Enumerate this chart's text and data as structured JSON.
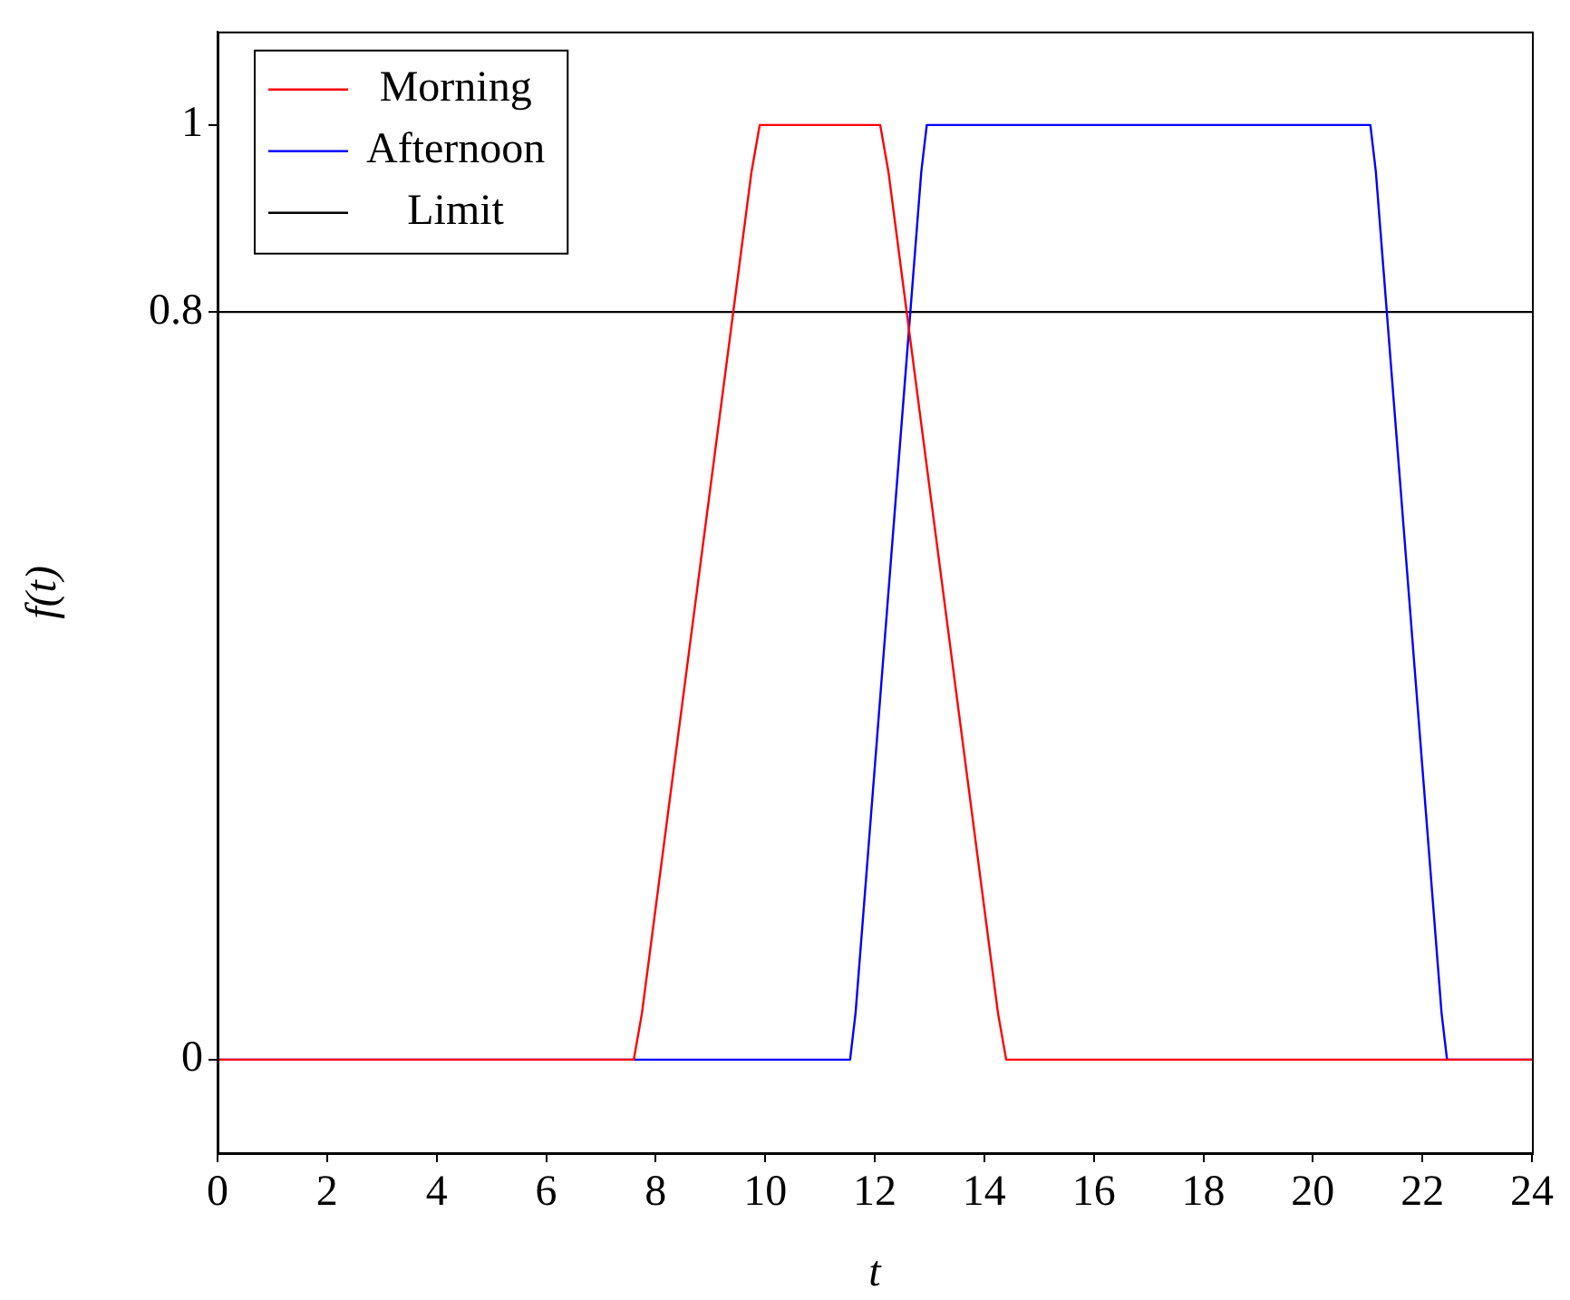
{
  "chart_data": {
    "type": "line",
    "xlabel": "t",
    "ylabel": "f(t)",
    "xlim": [
      0,
      24
    ],
    "xticks": [
      0,
      2,
      4,
      6,
      8,
      10,
      12,
      14,
      16,
      18,
      20,
      22,
      24
    ],
    "ylim": [
      -0.1,
      1.1
    ],
    "yticks": [
      0,
      0.8,
      1
    ],
    "legend": "top left",
    "series": [
      {
        "name": "Morning",
        "color": "#ff0000",
        "x": [
          0,
          7.6,
          7.75,
          9.75,
          9.9,
          12.1,
          12.25,
          14.25,
          14.4,
          24
        ],
        "values": [
          0,
          0,
          0.05,
          0.95,
          1,
          1,
          0.95,
          0.05,
          0,
          0
        ]
      },
      {
        "name": "Afternoon",
        "color": "#0000ff",
        "x": [
          0,
          11.55,
          11.65,
          12.85,
          12.95,
          21.05,
          21.15,
          22.35,
          22.45,
          24
        ],
        "values": [
          0,
          0,
          0.05,
          0.95,
          1,
          1,
          0.95,
          0.05,
          0,
          0
        ]
      },
      {
        "name": "Limit",
        "color": "#000000",
        "x": [
          0,
          24
        ],
        "values": [
          0.8,
          0.8
        ]
      }
    ]
  }
}
